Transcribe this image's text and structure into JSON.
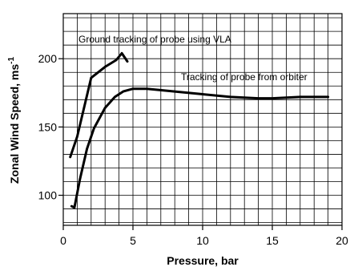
{
  "chart_data": {
    "type": "line",
    "title": "",
    "xlabel": "Pressure, bar",
    "ylabel": "Zonal Wind Speed, ms",
    "ylabel_superscript": "-1",
    "xlim": [
      0,
      20
    ],
    "ylim": [
      78,
      233
    ],
    "x_ticks": [
      0,
      5,
      10,
      15,
      20
    ],
    "y_ticks": [
      100,
      150,
      200
    ],
    "grid": true,
    "legend": "none",
    "series": [
      {
        "x": [
          0.5,
          1.0,
          2.0,
          3.0,
          3.8,
          4.2,
          4.6
        ],
        "y": [
          128,
          143,
          186,
          194,
          199,
          204,
          198
        ]
      },
      {
        "x": [
          0.6,
          0.8,
          1.2,
          1.7,
          2.2,
          3.0,
          3.7,
          4.3,
          5.0,
          6.0,
          8.0,
          10.0,
          12.0,
          14.0,
          15.0,
          17.0,
          19.0
        ],
        "y": [
          92,
          91,
          112,
          134,
          149,
          164,
          172,
          176,
          178,
          178,
          176,
          174,
          172,
          171,
          171,
          172,
          172
        ]
      }
    ],
    "annotations": [
      {
        "text": "Ground tracking of probe using VLA"
      },
      {
        "text": "Tracking of probe from orbiter"
      }
    ]
  }
}
